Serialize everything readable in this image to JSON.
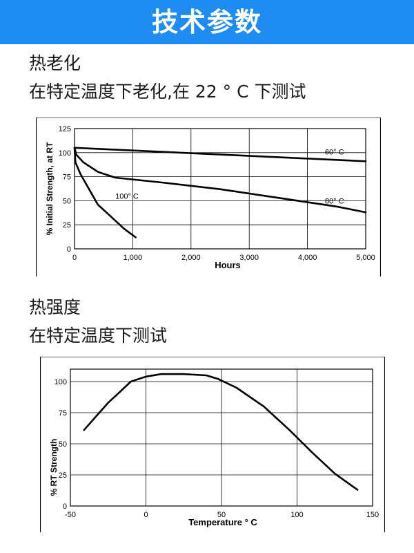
{
  "banner": {
    "title": "技术参数"
  },
  "sections": [
    {
      "heading": "热老化",
      "description": "在特定温度下老化,在 22 ° C 下测试"
    },
    {
      "heading": "热强度",
      "description": "在特定温度下测试"
    }
  ],
  "chart_data": [
    {
      "type": "line",
      "title": "",
      "xlabel": "Hours",
      "ylabel": "% Initial Strength, at RT",
      "xlim": [
        0,
        5000
      ],
      "ylim": [
        0,
        125
      ],
      "x_ticks": [
        0,
        1000,
        2000,
        3000,
        4000,
        5000
      ],
      "x_tick_labels": [
        "0",
        "1,000",
        "2,000",
        "3,000",
        "4,000",
        "5,000"
      ],
      "y_ticks": [
        0,
        25,
        50,
        75,
        100,
        125
      ],
      "y_tick_labels": [
        "0",
        "25",
        "50",
        "75",
        "100",
        "125"
      ],
      "grid": true,
      "series": [
        {
          "name": "60° C",
          "points": [
            [
              0,
              105
            ],
            [
              5000,
              91
            ]
          ],
          "label_at": [
            4300,
            98
          ]
        },
        {
          "name": "80° C",
          "points": [
            [
              0,
              105
            ],
            [
              30,
              98
            ],
            [
              150,
              90
            ],
            [
              400,
              80
            ],
            [
              700,
              74
            ],
            [
              1500,
              69
            ],
            [
              2500,
              62
            ],
            [
              3500,
              53
            ],
            [
              4500,
              44
            ],
            [
              5000,
              38
            ]
          ],
          "label_at": [
            4300,
            47
          ]
        },
        {
          "name": "100° C",
          "points": [
            [
              0,
              105
            ],
            [
              15,
              90
            ],
            [
              100,
              78
            ],
            [
              250,
              62
            ],
            [
              400,
              46
            ],
            [
              600,
              35
            ],
            [
              850,
              21
            ],
            [
              1050,
              12
            ]
          ],
          "label_at": [
            700,
            52
          ]
        }
      ]
    },
    {
      "type": "line",
      "title": "",
      "xlabel": "Temperature ° C",
      "ylabel": "% RT Strength",
      "xlim": [
        -50,
        150
      ],
      "ylim": [
        0,
        110
      ],
      "x_ticks": [
        -50,
        0,
        50,
        100,
        150
      ],
      "x_tick_labels": [
        "-50",
        "0",
        "50",
        "100",
        "150"
      ],
      "y_ticks": [
        0,
        25,
        50,
        75,
        100
      ],
      "y_tick_labels": [
        "0",
        "25",
        "50",
        "75",
        "100"
      ],
      "grid": true,
      "series": [
        {
          "name": "",
          "points": [
            [
              -41,
              61
            ],
            [
              -33,
              72
            ],
            [
              -25,
              83
            ],
            [
              -17,
              92
            ],
            [
              -10,
              100
            ],
            [
              0,
              104
            ],
            [
              10,
              106
            ],
            [
              25,
              106
            ],
            [
              40,
              105
            ],
            [
              48,
              102
            ],
            [
              60,
              95
            ],
            [
              78,
              80
            ],
            [
              95,
              61
            ],
            [
              110,
              43
            ],
            [
              125,
              26
            ],
            [
              140,
              13
            ]
          ]
        }
      ]
    }
  ]
}
